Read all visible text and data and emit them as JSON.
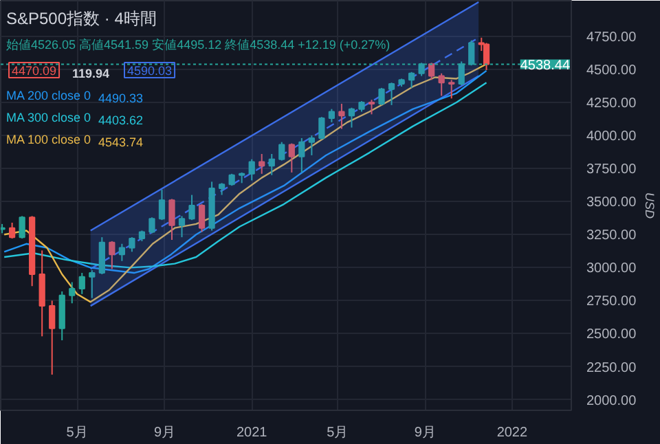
{
  "chart_data": {
    "type": "candlestick",
    "title": "S&P500指数 · 4時間",
    "subtitle": "始値4526.05 高値4541.59 安値4495.12 終値4538.44 +12.19 (+0.27%)",
    "ylabel": "USD",
    "x": [
      "2020-01-17",
      "2020-01-31",
      "2020-02-14",
      "2020-02-28",
      "2020-03-13",
      "2020-03-27",
      "2020-04-10",
      "2020-04-24",
      "2020-05-08",
      "2020-05-22",
      "2020-06-05",
      "2020-06-19",
      "2020-07-03",
      "2020-07-17",
      "2020-07-31",
      "2020-08-14",
      "2020-08-28",
      "2020-09-11",
      "2020-09-25",
      "2020-10-09",
      "2020-10-23",
      "2020-11-06",
      "2020-11-20",
      "2020-12-04",
      "2020-12-18",
      "2021-01-01",
      "2021-01-15",
      "2021-01-29",
      "2021-02-12",
      "2021-02-26",
      "2021-03-12",
      "2021-03-26",
      "2021-04-09",
      "2021-04-23",
      "2021-05-07",
      "2021-05-21",
      "2021-06-04",
      "2021-06-18",
      "2021-07-02",
      "2021-07-16",
      "2021-07-30",
      "2021-08-13",
      "2021-08-27",
      "2021-09-10",
      "2021-09-24",
      "2021-10-08",
      "2021-10-22",
      "2021-11-05",
      "2021-11-19",
      "2021-11-26"
    ],
    "ohlc": [
      [
        3290,
        3330,
        3260,
        3300
      ],
      [
        3300,
        3340,
        3220,
        3230
      ],
      [
        3230,
        3390,
        3220,
        3380
      ],
      [
        3380,
        3390,
        2860,
        2950
      ],
      [
        2950,
        3130,
        2480,
        2710
      ],
      [
        2710,
        2750,
        2190,
        2540
      ],
      [
        2540,
        2820,
        2450,
        2790
      ],
      [
        2790,
        2890,
        2730,
        2840
      ],
      [
        2840,
        2960,
        2800,
        2930
      ],
      [
        2930,
        2980,
        2770,
        2960
      ],
      [
        2960,
        3230,
        2950,
        3190
      ],
      [
        3190,
        3200,
        2990,
        3100
      ],
      [
        3100,
        3180,
        3050,
        3150
      ],
      [
        3150,
        3230,
        3120,
        3220
      ],
      [
        3220,
        3280,
        3200,
        3270
      ],
      [
        3270,
        3380,
        3260,
        3370
      ],
      [
        3370,
        3590,
        3360,
        3510
      ],
      [
        3510,
        3520,
        3210,
        3320
      ],
      [
        3320,
        3390,
        3230,
        3370
      ],
      [
        3370,
        3550,
        3360,
        3470
      ],
      [
        3470,
        3480,
        3270,
        3300
      ],
      [
        3300,
        3650,
        3280,
        3600
      ],
      [
        3600,
        3640,
        3550,
        3630
      ],
      [
        3630,
        3710,
        3620,
        3700
      ],
      [
        3700,
        3720,
        3640,
        3710
      ],
      [
        3710,
        3820,
        3660,
        3800
      ],
      [
        3800,
        3860,
        3710,
        3770
      ],
      [
        3770,
        3860,
        3700,
        3820
      ],
      [
        3820,
        3950,
        3810,
        3930
      ],
      [
        3930,
        3940,
        3720,
        3840
      ],
      [
        3840,
        3980,
        3720,
        3950
      ],
      [
        3950,
        4000,
        3850,
        3980
      ],
      [
        3980,
        4140,
        3970,
        4130
      ],
      [
        4130,
        4200,
        4100,
        4180
      ],
      [
        4180,
        4240,
        4050,
        4150
      ],
      [
        4150,
        4210,
        4060,
        4200
      ],
      [
        4200,
        4260,
        4180,
        4250
      ],
      [
        4250,
        4270,
        4160,
        4240
      ],
      [
        4240,
        4360,
        4230,
        4350
      ],
      [
        4350,
        4400,
        4230,
        4390
      ],
      [
        4390,
        4430,
        4370,
        4420
      ],
      [
        4420,
        4480,
        4360,
        4470
      ],
      [
        4470,
        4550,
        4450,
        4540
      ],
      [
        4540,
        4550,
        4420,
        4450
      ],
      [
        4450,
        4470,
        4300,
        4400
      ],
      [
        4400,
        4420,
        4280,
        4390
      ],
      [
        4390,
        4560,
        4380,
        4540
      ],
      [
        4540,
        4720,
        4530,
        4700
      ],
      [
        4700,
        4740,
        4640,
        4690
      ],
      [
        4690,
        4700,
        4495.12,
        4538.44
      ]
    ],
    "colors": [
      "#26a69a",
      "#ef5350",
      "#26a69a",
      "#ef5350",
      "#ef5350",
      "#ef5350",
      "#26a69a",
      "#26a69a",
      "#26a69a",
      "#26a69a",
      "#26a69a",
      "#ef5350",
      "#26a69a",
      "#26a69a",
      "#26a69a",
      "#26a69a",
      "#26a69a",
      "#ef5350",
      "#26a69a",
      "#26a69a",
      "#ef5350",
      "#26a69a",
      "#26a69a",
      "#26a69a",
      "#26a69a",
      "#26a69a",
      "#ef5350",
      "#26a69a",
      "#26a69a",
      "#ef5350",
      "#26a69a",
      "#26a69a",
      "#26a69a",
      "#26a69a",
      "#ef5350",
      "#26a69a",
      "#26a69a",
      "#ef5350",
      "#26a69a",
      "#26a69a",
      "#26a69a",
      "#26a69a",
      "#26a69a",
      "#ef5350",
      "#ef5350",
      "#ef5350",
      "#26a69a",
      "#26a69a",
      "#ef5350",
      "#ef5350"
    ],
    "series": [
      {
        "type": "line",
        "line_style": "dashed",
        "color": "#3d6ee8",
        "x": [
          "2020-05-20",
          "2021-11-15"
        ],
        "values": [
          2990,
          4740
        ],
        "lower": [
          2710,
          4450
        ],
        "upper": [
          3280,
          5010
        ]
      },
      {
        "type": "line",
        "color": "#3d6ee8",
        "x": [
          "2020-05-20",
          "2021-11-15"
        ],
        "values": [
          3280,
          5010
        ]
      },
      {
        "type": "line",
        "color": "#3d6ee8",
        "x": [
          "2020-05-20",
          "2021-11-15"
        ],
        "values": [
          2710,
          4450
        ]
      },
      {
        "type": "line",
        "name": "MA 200 close 0",
        "color": "#2196f3",
        "x": [
          "2020-01-20",
          "2020-02-20",
          "2020-03-20",
          "2020-04-20",
          "2020-05-20",
          "2020-06-20",
          "2020-07-20",
          "2020-08-10",
          "2020-09-10",
          "2020-10-15",
          "2020-11-15",
          "2020-12-15",
          "2021-02-15",
          "2021-04-15",
          "2021-06-15",
          "2021-08-15",
          "2021-10-15",
          "2021-11-26"
        ],
        "values": [
          3120,
          3180,
          3150,
          3060,
          3000,
          2980,
          2960,
          2990,
          3100,
          3250,
          3350,
          3450,
          3620,
          3850,
          4030,
          4200,
          4320,
          4490
        ]
      },
      {
        "type": "line",
        "name": "MA 300 close 0",
        "color": "#26c6da",
        "x": [
          "2020-01-20",
          "2020-03-01",
          "2020-04-15",
          "2020-06-01",
          "2020-07-15",
          "2020-08-15",
          "2020-09-15",
          "2020-10-15",
          "2020-11-15",
          "2020-12-15",
          "2021-02-15",
          "2021-04-15",
          "2021-06-15",
          "2021-08-15",
          "2021-10-15",
          "2021-11-26"
        ],
        "values": [
          3080,
          3110,
          3060,
          3020,
          3000,
          3010,
          3030,
          3080,
          3200,
          3310,
          3480,
          3680,
          3870,
          4070,
          4250,
          4400
        ]
      },
      {
        "type": "line",
        "name": "MA 100 close 0",
        "color": "#e8b84a",
        "x": [
          "2020-01-20",
          "2020-02-20",
          "2020-03-20",
          "2020-04-10",
          "2020-05-01",
          "2020-05-20",
          "2020-06-15",
          "2020-07-15",
          "2020-08-15",
          "2020-09-15",
          "2020-10-15",
          "2020-11-15",
          "2020-12-15",
          "2021-01-15",
          "2021-02-15",
          "2021-03-15",
          "2021-04-15",
          "2021-05-15",
          "2021-06-15",
          "2021-07-15",
          "2021-08-15",
          "2021-09-15",
          "2021-10-15",
          "2021-11-01",
          "2021-11-26"
        ],
        "values": [
          3250,
          3280,
          3150,
          2950,
          2800,
          2740,
          2830,
          3000,
          3180,
          3300,
          3330,
          3400,
          3560,
          3680,
          3780,
          3880,
          3990,
          4100,
          4180,
          4270,
          4370,
          4440,
          4430,
          4470,
          4540
        ]
      }
    ],
    "annotations": [
      "4470.09",
      "119.94",
      "4590.03",
      "4490.33",
      "4403.62",
      "4543.74"
    ],
    "ref_lines": [
      {
        "axis": "y",
        "value": 4538.44,
        "label": "4538.44",
        "color": "#26a69a",
        "line_style": "dotted"
      }
    ],
    "xlim": [
      "2020-01-15",
      "2022-03-25"
    ],
    "xticks": [
      {
        "value": "2020-05-01",
        "label": "5月"
      },
      {
        "value": "2020-09-01",
        "label": "9月"
      },
      {
        "value": "2021-01-01",
        "label": "2021"
      },
      {
        "value": "2021-05-01",
        "label": "5月"
      },
      {
        "value": "2021-09-01",
        "label": "9月"
      },
      {
        "value": "2022-01-01",
        "label": "2022"
      }
    ],
    "ylim": [
      1920,
      5020
    ],
    "yticks": [
      {
        "value": 2000,
        "label": "2000.00"
      },
      {
        "value": 2250,
        "label": "2250.00"
      },
      {
        "value": 2500,
        "label": "2500.00"
      },
      {
        "value": 2750,
        "label": "2750.00"
      },
      {
        "value": 3000,
        "label": "3000.00"
      },
      {
        "value": 3250,
        "label": "3250.00"
      },
      {
        "value": 3500,
        "label": "3500.00"
      },
      {
        "value": 3750,
        "label": "3750.00"
      },
      {
        "value": 4000,
        "label": "4000.00"
      },
      {
        "value": 4250,
        "label": "4250.00"
      },
      {
        "value": 4500,
        "label": "4500.00"
      },
      {
        "value": 4750,
        "label": "4750.00"
      }
    ],
    "grid": true,
    "legend": "top left"
  }
}
